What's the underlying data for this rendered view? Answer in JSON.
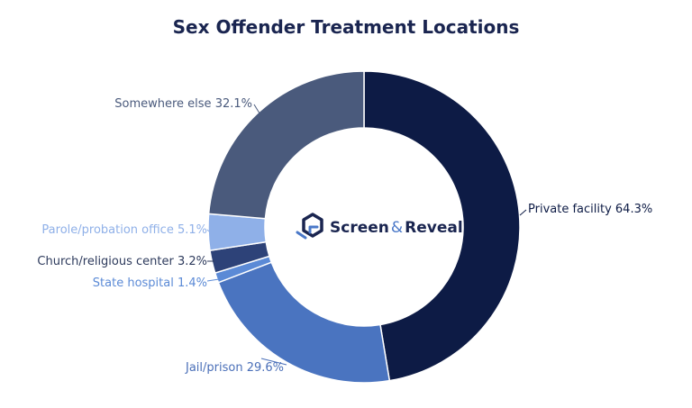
{
  "chart_data": {
    "type": "pie",
    "title": "Sex Offender Treatment Locations",
    "donut": true,
    "categories": [
      "Private facility",
      "Jail/prison",
      "State hospital",
      "Church/religious center",
      "Parole/probation office",
      "Somewhere else"
    ],
    "values": [
      64.3,
      29.6,
      1.4,
      3.2,
      5.1,
      32.1
    ],
    "labels": [
      "Private facility 64.3%",
      "Jail/prison 29.6%",
      "State hospital 1.4%",
      "Church/religious center 3.2%",
      "Parole/probation office 5.1%",
      "Somewhere else 32.1%"
    ],
    "colors": [
      "#0d1b45",
      "#4a74c0",
      "#5b8ad6",
      "#2d4278",
      "#8fb0e8",
      "#4a5a7c"
    ],
    "label_colors": [
      "#0d1b45",
      "#4a6fb8",
      "#5b8ad6",
      "#2d3a5c",
      "#8fb0e8",
      "#4a5a7c"
    ]
  },
  "logo": {
    "name_part1": "Screen",
    "amp": "&",
    "name_part2": "Reveal"
  }
}
